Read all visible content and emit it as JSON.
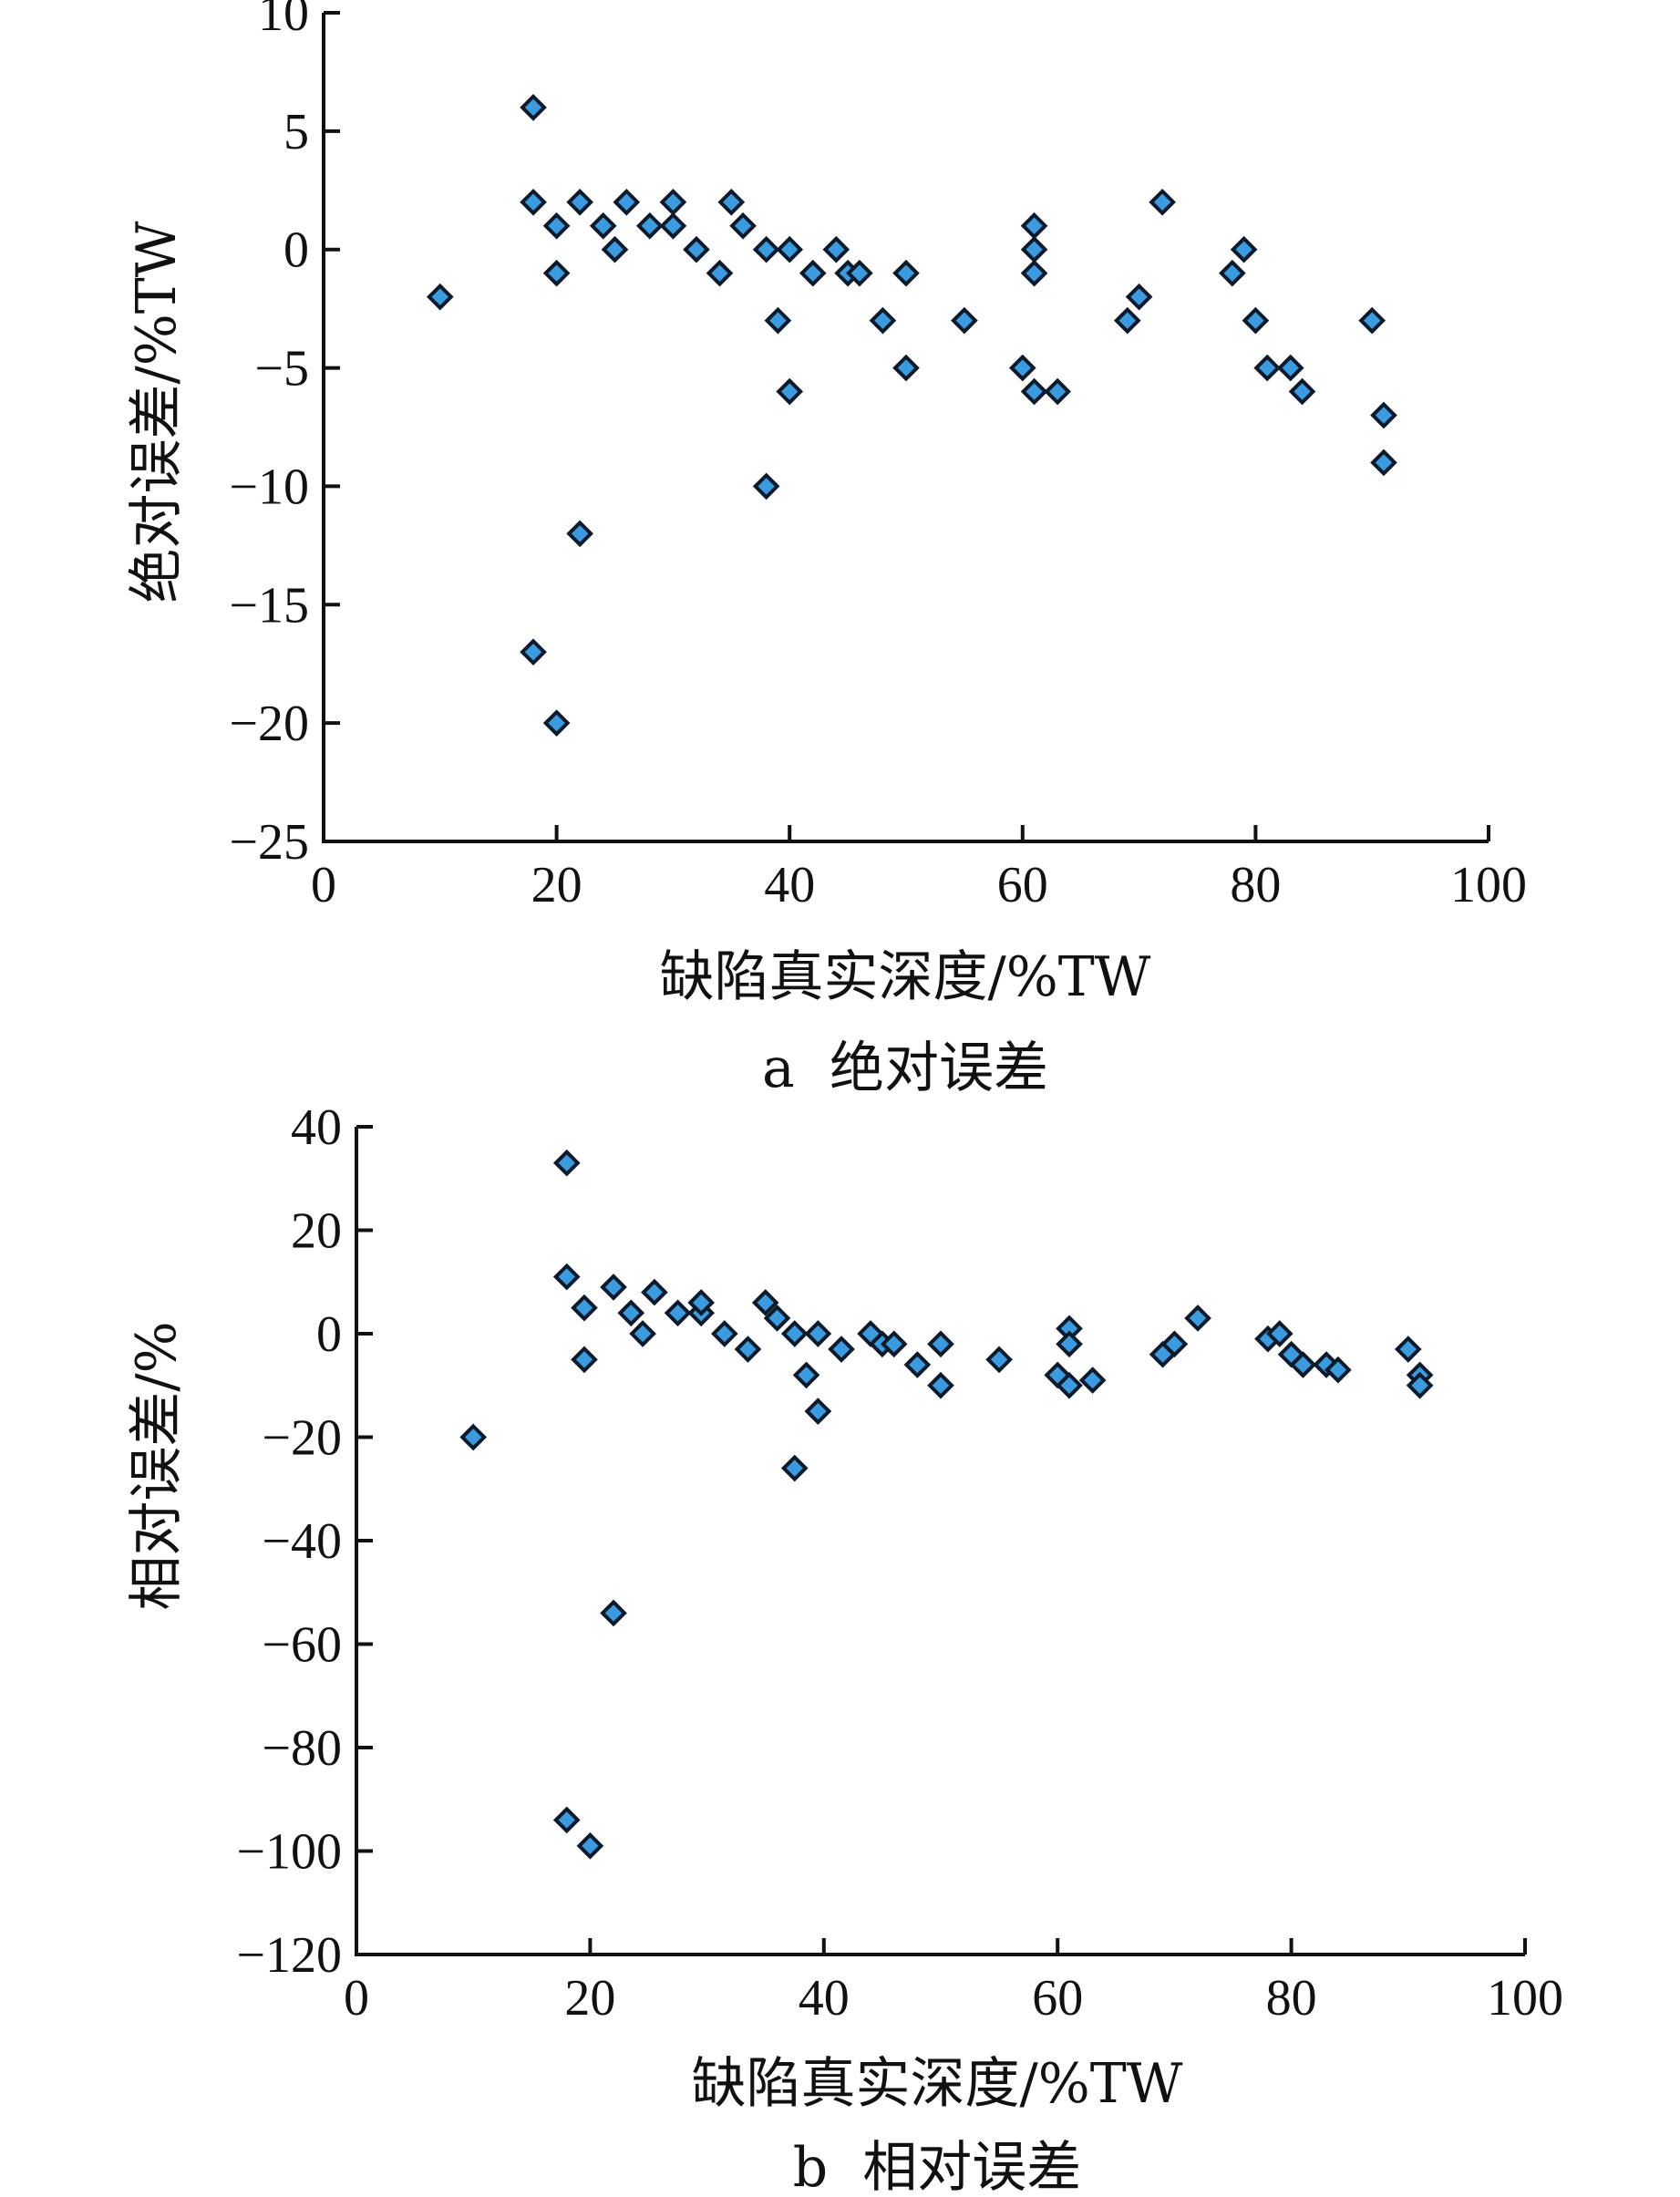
{
  "chart_data": [
    {
      "type": "scatter",
      "caption": "a  绝对误差",
      "xlabel": "缺陷真实深度/%TW",
      "ylabel": "绝对误差/%TW",
      "xlim": [
        0,
        100
      ],
      "ylim": [
        -25,
        10
      ],
      "xticks": [
        0,
        20,
        40,
        60,
        80,
        100
      ],
      "yticks": [
        10,
        5,
        0,
        -5,
        -10,
        -15,
        -20,
        -25
      ],
      "xticklabels": [
        "0",
        "20",
        "40",
        "60",
        "80",
        "100"
      ],
      "yticklabels": [
        "10",
        "5",
        "0",
        "−5",
        "−10",
        "−15",
        "−20",
        "−25"
      ],
      "grid": false,
      "marker": "diamond",
      "marker_color": "#3b9be0",
      "points": [
        [
          10,
          -2
        ],
        [
          18,
          6
        ],
        [
          18,
          2
        ],
        [
          18,
          -17
        ],
        [
          20,
          1
        ],
        [
          20,
          -1
        ],
        [
          20,
          -20
        ],
        [
          22,
          2
        ],
        [
          22,
          -12
        ],
        [
          24,
          1
        ],
        [
          25,
          0
        ],
        [
          26,
          2
        ],
        [
          28,
          1
        ],
        [
          30,
          2
        ],
        [
          30,
          1
        ],
        [
          32,
          0
        ],
        [
          34,
          -1
        ],
        [
          35,
          2
        ],
        [
          36,
          1
        ],
        [
          38,
          0
        ],
        [
          38,
          -10
        ],
        [
          39,
          -3
        ],
        [
          40,
          0
        ],
        [
          40,
          -6
        ],
        [
          42,
          -1
        ],
        [
          44,
          0
        ],
        [
          45,
          -1
        ],
        [
          46,
          -1
        ],
        [
          48,
          -3
        ],
        [
          50,
          -1
        ],
        [
          50,
          -5
        ],
        [
          55,
          -3
        ],
        [
          60,
          -5
        ],
        [
          61,
          1
        ],
        [
          61,
          0
        ],
        [
          61,
          -1
        ],
        [
          61,
          -6
        ],
        [
          63,
          -6
        ],
        [
          69,
          -3
        ],
        [
          70,
          -2
        ],
        [
          72,
          2
        ],
        [
          78,
          -1
        ],
        [
          79,
          0
        ],
        [
          80,
          -3
        ],
        [
          81,
          -5
        ],
        [
          83,
          -5
        ],
        [
          84,
          -6
        ],
        [
          90,
          -3
        ],
        [
          91,
          -7
        ],
        [
          91,
          -9
        ]
      ]
    },
    {
      "type": "scatter",
      "caption": "b  相对误差",
      "xlabel": "缺陷真实深度/%TW",
      "ylabel": "相对误差/%",
      "xlim": [
        0,
        100
      ],
      "ylim": [
        -120,
        40
      ],
      "xticks": [
        0,
        20,
        40,
        60,
        80,
        100
      ],
      "yticks": [
        40,
        20,
        0,
        -20,
        -40,
        -60,
        -80,
        -100,
        -120
      ],
      "xticklabels": [
        "0",
        "20",
        "40",
        "60",
        "80",
        "100"
      ],
      "yticklabels": [
        "40",
        "20",
        "0",
        "−20",
        "−40",
        "−60",
        "−80",
        "−100",
        "−120"
      ],
      "grid": false,
      "marker": "diamond",
      "marker_color": "#3b9be0",
      "points": [
        [
          10,
          -20
        ],
        [
          18,
          33
        ],
        [
          18,
          11
        ],
        [
          18,
          -94
        ],
        [
          19.5,
          5
        ],
        [
          19.5,
          -5
        ],
        [
          20,
          -99
        ],
        [
          22,
          9
        ],
        [
          22,
          -54
        ],
        [
          23.5,
          4
        ],
        [
          24.5,
          0
        ],
        [
          25.5,
          8
        ],
        [
          27.5,
          4
        ],
        [
          29.5,
          4
        ],
        [
          29.5,
          6
        ],
        [
          31.5,
          0
        ],
        [
          33.5,
          -3
        ],
        [
          35,
          6
        ],
        [
          36,
          3
        ],
        [
          37.5,
          0
        ],
        [
          37.5,
          -26
        ],
        [
          38.5,
          -8
        ],
        [
          39.5,
          0
        ],
        [
          39.5,
          -15
        ],
        [
          41.5,
          -3
        ],
        [
          44,
          0
        ],
        [
          45,
          -2
        ],
        [
          46,
          -2
        ],
        [
          48,
          -6
        ],
        [
          50,
          -2
        ],
        [
          50,
          -10
        ],
        [
          55,
          -5
        ],
        [
          60,
          -8
        ],
        [
          61,
          1
        ],
        [
          61,
          -2
        ],
        [
          61,
          -10
        ],
        [
          63,
          -9
        ],
        [
          69,
          -4
        ],
        [
          70,
          -2
        ],
        [
          72,
          3
        ],
        [
          78,
          -1
        ],
        [
          79,
          0
        ],
        [
          80,
          -4
        ],
        [
          81,
          -6
        ],
        [
          83,
          -6
        ],
        [
          84,
          -7
        ],
        [
          90,
          -3
        ],
        [
          91,
          -8
        ],
        [
          91,
          -10
        ]
      ]
    }
  ]
}
